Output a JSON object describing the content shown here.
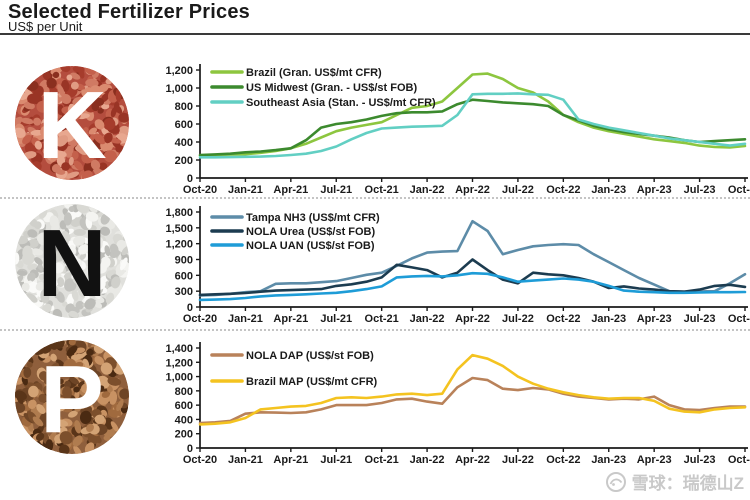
{
  "header": {
    "title": "Selected Fertilizer Prices",
    "subtitle": "US$ per Unit"
  },
  "watermark": {
    "text": "雪球：瑞德山Z",
    "logo": "xueqiu-snowball"
  },
  "chart_data": [
    {
      "type": "line",
      "panel": "K",
      "icon": {
        "letter": "K",
        "letter_color": "#ffffff",
        "base_color": "#b44d3e",
        "granule_colors": [
          "#d07a63",
          "#a63c2c",
          "#e09b83",
          "#8a2f1f",
          "#c4604b",
          "#db8b70",
          "#993425",
          "#e8a78f"
        ]
      },
      "x_unit": "month",
      "x_range": [
        "Oct-20",
        "Oct-23"
      ],
      "x_tick_labels": [
        "Oct-20",
        "Jan-21",
        "Apr-21",
        "Jul-21",
        "Oct-21",
        "Jan-22",
        "Apr-22",
        "Jul-22",
        "Oct-22",
        "Jan-23",
        "Apr-23",
        "Jul-23",
        "Oct-23"
      ],
      "ylim": [
        0,
        1200
      ],
      "yticks": [
        0,
        200,
        400,
        600,
        800,
        1000,
        1200
      ],
      "grid": false,
      "legend_position": "top-left-inside",
      "series": [
        {
          "name": "Brazil (Gran. US$/mt CFR)",
          "color": "#8dc63f",
          "values": [
            250,
            255,
            260,
            265,
            280,
            300,
            330,
            380,
            450,
            520,
            560,
            590,
            620,
            700,
            780,
            800,
            850,
            1000,
            1150,
            1160,
            1100,
            1000,
            950,
            850,
            700,
            620,
            560,
            520,
            490,
            460,
            430,
            410,
            390,
            360,
            345,
            340,
            355
          ]
        },
        {
          "name": "US Midwest (Gran. - US$/st FOB)",
          "color": "#3c8a2e",
          "values": [
            255,
            262,
            270,
            285,
            295,
            310,
            330,
            420,
            560,
            600,
            620,
            650,
            690,
            720,
            730,
            730,
            740,
            820,
            870,
            855,
            840,
            830,
            820,
            800,
            700,
            640,
            580,
            540,
            510,
            490,
            470,
            450,
            420,
            400,
            410,
            420,
            430
          ]
        },
        {
          "name": "Southeast Asia (Stan. - US$/mt CFR)",
          "color": "#62cfc3",
          "values": [
            230,
            230,
            232,
            235,
            238,
            245,
            255,
            270,
            300,
            350,
            430,
            500,
            550,
            560,
            570,
            575,
            580,
            700,
            930,
            935,
            935,
            940,
            930,
            925,
            870,
            650,
            600,
            560,
            530,
            500,
            470,
            440,
            420,
            400,
            380,
            360,
            380
          ]
        }
      ]
    },
    {
      "type": "line",
      "panel": "N",
      "icon": {
        "letter": "N",
        "letter_color": "#111111",
        "base_color": "#e0e0dc",
        "granule_colors": [
          "#f4f4f1",
          "#d0d0cb",
          "#e9e9e5",
          "#c3c3bf",
          "#fafaf8",
          "#d9d9d4",
          "#bcbcb8"
        ]
      },
      "x_unit": "month",
      "x_range": [
        "Oct-20",
        "Oct-23"
      ],
      "x_tick_labels": [
        "Oct-20",
        "Jan-21",
        "Apr-21",
        "Jul-21",
        "Oct-21",
        "Jan-22",
        "Apr-22",
        "Jul-22",
        "Oct-22",
        "Jan-23",
        "Apr-23",
        "Jul-23",
        "Oct-23"
      ],
      "ylim": [
        0,
        1800
      ],
      "yticks": [
        0,
        300,
        600,
        900,
        1200,
        1500,
        1800
      ],
      "grid": false,
      "legend_position": "top-left-inside",
      "series": [
        {
          "name": "Tampa NH3 (US$/mt CFR)",
          "color": "#5d8ca8",
          "values": [
            220,
            230,
            250,
            280,
            300,
            440,
            450,
            450,
            470,
            490,
            550,
            610,
            650,
            780,
            920,
            1030,
            1050,
            1060,
            1625,
            1440,
            1000,
            1080,
            1150,
            1175,
            1190,
            1175,
            1000,
            850,
            700,
            550,
            425,
            300,
            290,
            295,
            300,
            450,
            620
          ]
        },
        {
          "name": "NOLA Urea (US$/st FOB)",
          "color": "#1c3c50",
          "values": [
            230,
            240,
            250,
            265,
            290,
            310,
            320,
            330,
            340,
            400,
            430,
            480,
            560,
            800,
            750,
            700,
            560,
            650,
            900,
            700,
            520,
            450,
            650,
            620,
            600,
            550,
            480,
            360,
            390,
            350,
            330,
            300,
            290,
            330,
            400,
            420,
            380
          ]
        },
        {
          "name": "NOLA UAN (US$/st FOB)",
          "color": "#1e9cd7",
          "values": [
            135,
            140,
            150,
            170,
            200,
            220,
            230,
            240,
            255,
            270,
            300,
            340,
            390,
            560,
            580,
            590,
            580,
            600,
            640,
            630,
            560,
            480,
            500,
            520,
            540,
            520,
            480,
            400,
            310,
            290,
            280,
            270,
            270,
            275,
            280,
            280,
            285
          ]
        }
      ]
    },
    {
      "type": "line",
      "panel": "P",
      "icon": {
        "letter": "P",
        "letter_color": "#ffffff",
        "base_color": "#8f5f3c",
        "granule_colors": [
          "#b07c4f",
          "#6e4526",
          "#c89263",
          "#5a3519",
          "#a06a3e",
          "#d3a375",
          "#7c4f2c",
          "#4a2a12"
        ]
      },
      "x_unit": "month",
      "x_range": [
        "Oct-20",
        "Oct-23"
      ],
      "x_tick_labels": [
        "Oct-20",
        "Jan-21",
        "Apr-21",
        "Jul-21",
        "Oct-21",
        "Jan-22",
        "Apr-22",
        "Jul-22",
        "Oct-22",
        "Jan-23",
        "Apr-23",
        "Jul-23",
        "Oct-23"
      ],
      "ylim": [
        0,
        1400
      ],
      "yticks": [
        0,
        200,
        400,
        600,
        800,
        1000,
        1200,
        1400
      ],
      "grid": false,
      "legend_position": "top-left-inside",
      "series": [
        {
          "name": "NOLA DAP (US$/st FOB)",
          "color": "#b9825a",
          "values": [
            350,
            360,
            380,
            480,
            500,
            495,
            490,
            500,
            540,
            600,
            600,
            600,
            630,
            680,
            690,
            650,
            620,
            850,
            980,
            950,
            830,
            810,
            840,
            820,
            760,
            720,
            700,
            680,
            690,
            680,
            720,
            600,
            540,
            530,
            560,
            580,
            580
          ]
        },
        {
          "name": "Brazil MAP (US$/mt CFR)",
          "color": "#f4c320",
          "values": [
            330,
            340,
            360,
            420,
            540,
            560,
            580,
            590,
            630,
            700,
            710,
            700,
            720,
            750,
            760,
            740,
            760,
            1100,
            1300,
            1250,
            1150,
            1000,
            900,
            830,
            780,
            740,
            710,
            690,
            700,
            700,
            660,
            550,
            510,
            500,
            540,
            560,
            570
          ]
        }
      ]
    }
  ]
}
